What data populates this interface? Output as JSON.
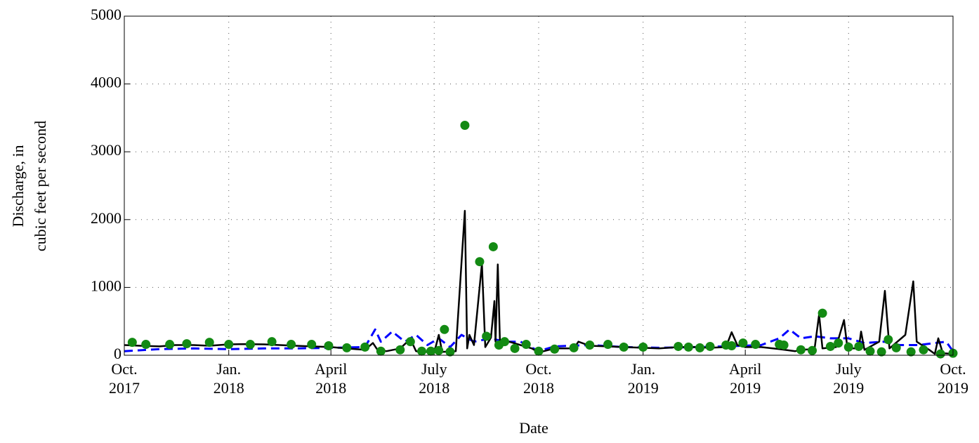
{
  "chart_data": {
    "type": "line",
    "xlabel": "Date",
    "ylabel": [
      "Discharge, in",
      "cubic feet per second"
    ],
    "xlim": [
      "2017-10-01",
      "2019-10-01"
    ],
    "xticks": [
      {
        "value": "2017-10-01",
        "label": "Oct. 2017"
      },
      {
        "value": "2018-01-01",
        "label": "Jan. 2018"
      },
      {
        "value": "2018-04-01",
        "label": "April 2018"
      },
      {
        "value": "2018-07-01",
        "label": "July 2018"
      },
      {
        "value": "2018-10-01",
        "label": "Oct. 2018"
      },
      {
        "value": "2019-01-01",
        "label": "Jan. 2019"
      },
      {
        "value": "2019-04-01",
        "label": "April 2019"
      },
      {
        "value": "2019-07-01",
        "label": "July 2019"
      },
      {
        "value": "2019-10-01",
        "label": "Oct. 2019"
      }
    ],
    "ylim": [
      0,
      5000
    ],
    "yticks": [
      0,
      1000,
      2000,
      3000,
      4000,
      5000
    ],
    "grid": true,
    "series": [
      {
        "color": "#0000ff",
        "style": "dashed",
        "x": [
          "2017-10-01",
          "2017-11-01",
          "2017-12-01",
          "2018-01-01",
          "2018-02-01",
          "2018-03-01",
          "2018-04-01",
          "2018-05-01",
          "2018-05-10",
          "2018-05-15",
          "2018-05-25",
          "2018-06-05",
          "2018-06-15",
          "2018-06-25",
          "2018-07-05",
          "2018-07-15",
          "2018-07-25",
          "2018-08-05",
          "2018-08-20",
          "2018-09-01",
          "2018-09-15",
          "2018-10-01",
          "2018-10-15",
          "2018-11-15",
          "2018-12-15",
          "2019-01-15",
          "2019-02-15",
          "2019-03-15",
          "2019-04-15",
          "2019-05-01",
          "2019-05-10",
          "2019-05-20",
          "2019-06-01",
          "2019-06-15",
          "2019-07-01",
          "2019-07-15",
          "2019-08-01",
          "2019-08-15",
          "2019-09-01",
          "2019-09-15",
          "2019-09-25",
          "2019-10-01"
        ],
        "values": [
          60,
          90,
          100,
          90,
          100,
          100,
          110,
          120,
          380,
          200,
          350,
          200,
          300,
          150,
          250,
          120,
          300,
          200,
          250,
          200,
          200,
          60,
          130,
          150,
          120,
          110,
          120,
          130,
          150,
          250,
          380,
          250,
          280,
          250,
          250,
          180,
          200,
          150,
          150,
          180,
          200,
          60
        ]
      },
      {
        "color": "#000000",
        "style": "solid",
        "x": [
          "2017-10-01",
          "2017-10-15",
          "2017-11-01",
          "2017-11-15",
          "2017-12-01",
          "2017-12-15",
          "2018-01-01",
          "2018-01-15",
          "2018-02-01",
          "2018-02-15",
          "2018-03-01",
          "2018-03-15",
          "2018-04-01",
          "2018-04-15",
          "2018-05-01",
          "2018-05-08",
          "2018-05-12",
          "2018-05-20",
          "2018-06-01",
          "2018-06-10",
          "2018-06-15",
          "2018-07-01",
          "2018-07-05",
          "2018-07-08",
          "2018-07-20",
          "2018-07-28",
          "2018-07-30",
          "2018-08-01",
          "2018-08-05",
          "2018-08-12",
          "2018-08-15",
          "2018-08-20",
          "2018-08-23",
          "2018-08-24",
          "2018-08-26",
          "2018-08-28",
          "2018-09-05",
          "2018-09-15",
          "2018-09-25",
          "2018-10-01",
          "2018-10-15",
          "2018-11-01",
          "2018-11-05",
          "2018-11-15",
          "2018-12-01",
          "2018-12-15",
          "2019-01-01",
          "2019-01-15",
          "2019-02-01",
          "2019-02-15",
          "2019-03-01",
          "2019-03-15",
          "2019-03-20",
          "2019-03-25",
          "2019-04-01",
          "2019-04-15",
          "2019-05-01",
          "2019-05-15",
          "2019-05-20",
          "2019-06-01",
          "2019-06-05",
          "2019-06-08",
          "2019-06-20",
          "2019-06-27",
          "2019-06-30",
          "2019-07-10",
          "2019-07-12",
          "2019-07-15",
          "2019-07-28",
          "2019-08-02",
          "2019-08-06",
          "2019-08-20",
          "2019-08-27",
          "2019-08-30",
          "2019-09-10",
          "2019-09-15",
          "2019-09-18",
          "2019-09-22",
          "2019-10-01"
        ],
        "values": [
          150,
          140,
          130,
          150,
          150,
          140,
          160,
          165,
          160,
          150,
          140,
          130,
          120,
          100,
          80,
          180,
          80,
          60,
          100,
          240,
          60,
          40,
          300,
          50,
          60,
          2130,
          100,
          300,
          150,
          1350,
          120,
          260,
          800,
          200,
          1340,
          150,
          200,
          150,
          100,
          40,
          100,
          100,
          200,
          140,
          130,
          120,
          110,
          100,
          120,
          120,
          110,
          120,
          340,
          150,
          120,
          120,
          90,
          60,
          80,
          90,
          600,
          100,
          120,
          520,
          100,
          100,
          350,
          80,
          200,
          950,
          100,
          300,
          1090,
          200,
          80,
          20,
          250,
          30,
          20
        ]
      },
      {
        "color": "#138a13",
        "style": "marker",
        "x": [
          "2017-10-08",
          "2017-10-20",
          "2017-11-10",
          "2017-11-25",
          "2017-12-15",
          "2018-01-01",
          "2018-01-20",
          "2018-02-08",
          "2018-02-25",
          "2018-03-15",
          "2018-03-30",
          "2018-04-15",
          "2018-05-01",
          "2018-05-15",
          "2018-06-01",
          "2018-06-10",
          "2018-06-20",
          "2018-06-28",
          "2018-07-05",
          "2018-07-10",
          "2018-07-15",
          "2018-07-28",
          "2018-08-10",
          "2018-08-16",
          "2018-08-22",
          "2018-08-27",
          "2018-09-01",
          "2018-09-10",
          "2018-09-20",
          "2018-10-01",
          "2018-10-15",
          "2018-11-01",
          "2018-11-15",
          "2018-12-01",
          "2018-12-15",
          "2019-01-01",
          "2019-02-01",
          "2019-02-10",
          "2019-02-20",
          "2019-03-01",
          "2019-03-15",
          "2019-03-20",
          "2019-03-30",
          "2019-04-10",
          "2019-05-01",
          "2019-05-05",
          "2019-05-20",
          "2019-05-30",
          "2019-06-08",
          "2019-06-15",
          "2019-06-22",
          "2019-07-01",
          "2019-07-10",
          "2019-07-20",
          "2019-07-30",
          "2019-08-05",
          "2019-08-12",
          "2019-08-25",
          "2019-09-05",
          "2019-09-20",
          "2019-10-01"
        ],
        "values": [
          190,
          160,
          160,
          170,
          190,
          160,
          160,
          200,
          160,
          160,
          140,
          110,
          120,
          60,
          80,
          200,
          60,
          60,
          70,
          380,
          50,
          3390,
          1380,
          280,
          1600,
          150,
          200,
          100,
          160,
          60,
          90,
          110,
          150,
          160,
          120,
          120,
          130,
          120,
          110,
          130,
          150,
          140,
          180,
          160,
          160,
          150,
          80,
          70,
          620,
          130,
          180,
          120,
          130,
          60,
          50,
          230,
          110,
          50,
          80,
          20,
          30
        ]
      }
    ]
  }
}
